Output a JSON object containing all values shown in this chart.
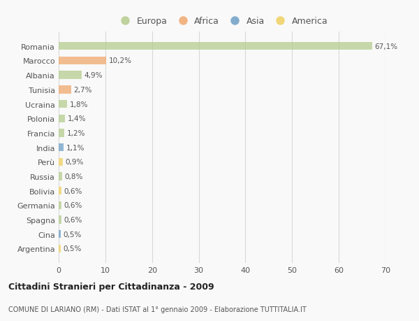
{
  "countries": [
    "Romania",
    "Marocco",
    "Albania",
    "Tunisia",
    "Ucraina",
    "Polonia",
    "Francia",
    "India",
    "Perù",
    "Russia",
    "Bolivia",
    "Germania",
    "Spagna",
    "Cina",
    "Argentina"
  ],
  "values": [
    67.1,
    10.2,
    4.9,
    2.7,
    1.8,
    1.4,
    1.2,
    1.1,
    0.9,
    0.8,
    0.6,
    0.6,
    0.6,
    0.5,
    0.5
  ],
  "labels": [
    "67,1%",
    "10,2%",
    "4,9%",
    "2,7%",
    "1,8%",
    "1,4%",
    "1,2%",
    "1,1%",
    "0,9%",
    "0,8%",
    "0,6%",
    "0,6%",
    "0,6%",
    "0,5%",
    "0,5%"
  ],
  "continents": [
    "Europa",
    "Africa",
    "Europa",
    "Africa",
    "Europa",
    "Europa",
    "Europa",
    "Asia",
    "America",
    "Europa",
    "America",
    "Europa",
    "Europa",
    "Asia",
    "America"
  ],
  "colors": {
    "Europa": "#b5cc8e",
    "Africa": "#f0a86e",
    "Asia": "#6e9fc5",
    "America": "#f0d060"
  },
  "background_color": "#f9f9f9",
  "grid_color": "#d8d8d8",
  "title": "Cittadini Stranieri per Cittadinanza - 2009",
  "subtitle": "COMUNE DI LARIANO (RM) - Dati ISTAT al 1° gennaio 2009 - Elaborazione TUTTITALIA.IT",
  "xlim": [
    0,
    70
  ],
  "xticks": [
    0,
    10,
    20,
    30,
    40,
    50,
    60,
    70
  ],
  "legend_order": [
    "Europa",
    "Africa",
    "Asia",
    "America"
  ],
  "bar_alpha": 0.75,
  "bar_height": 0.55
}
